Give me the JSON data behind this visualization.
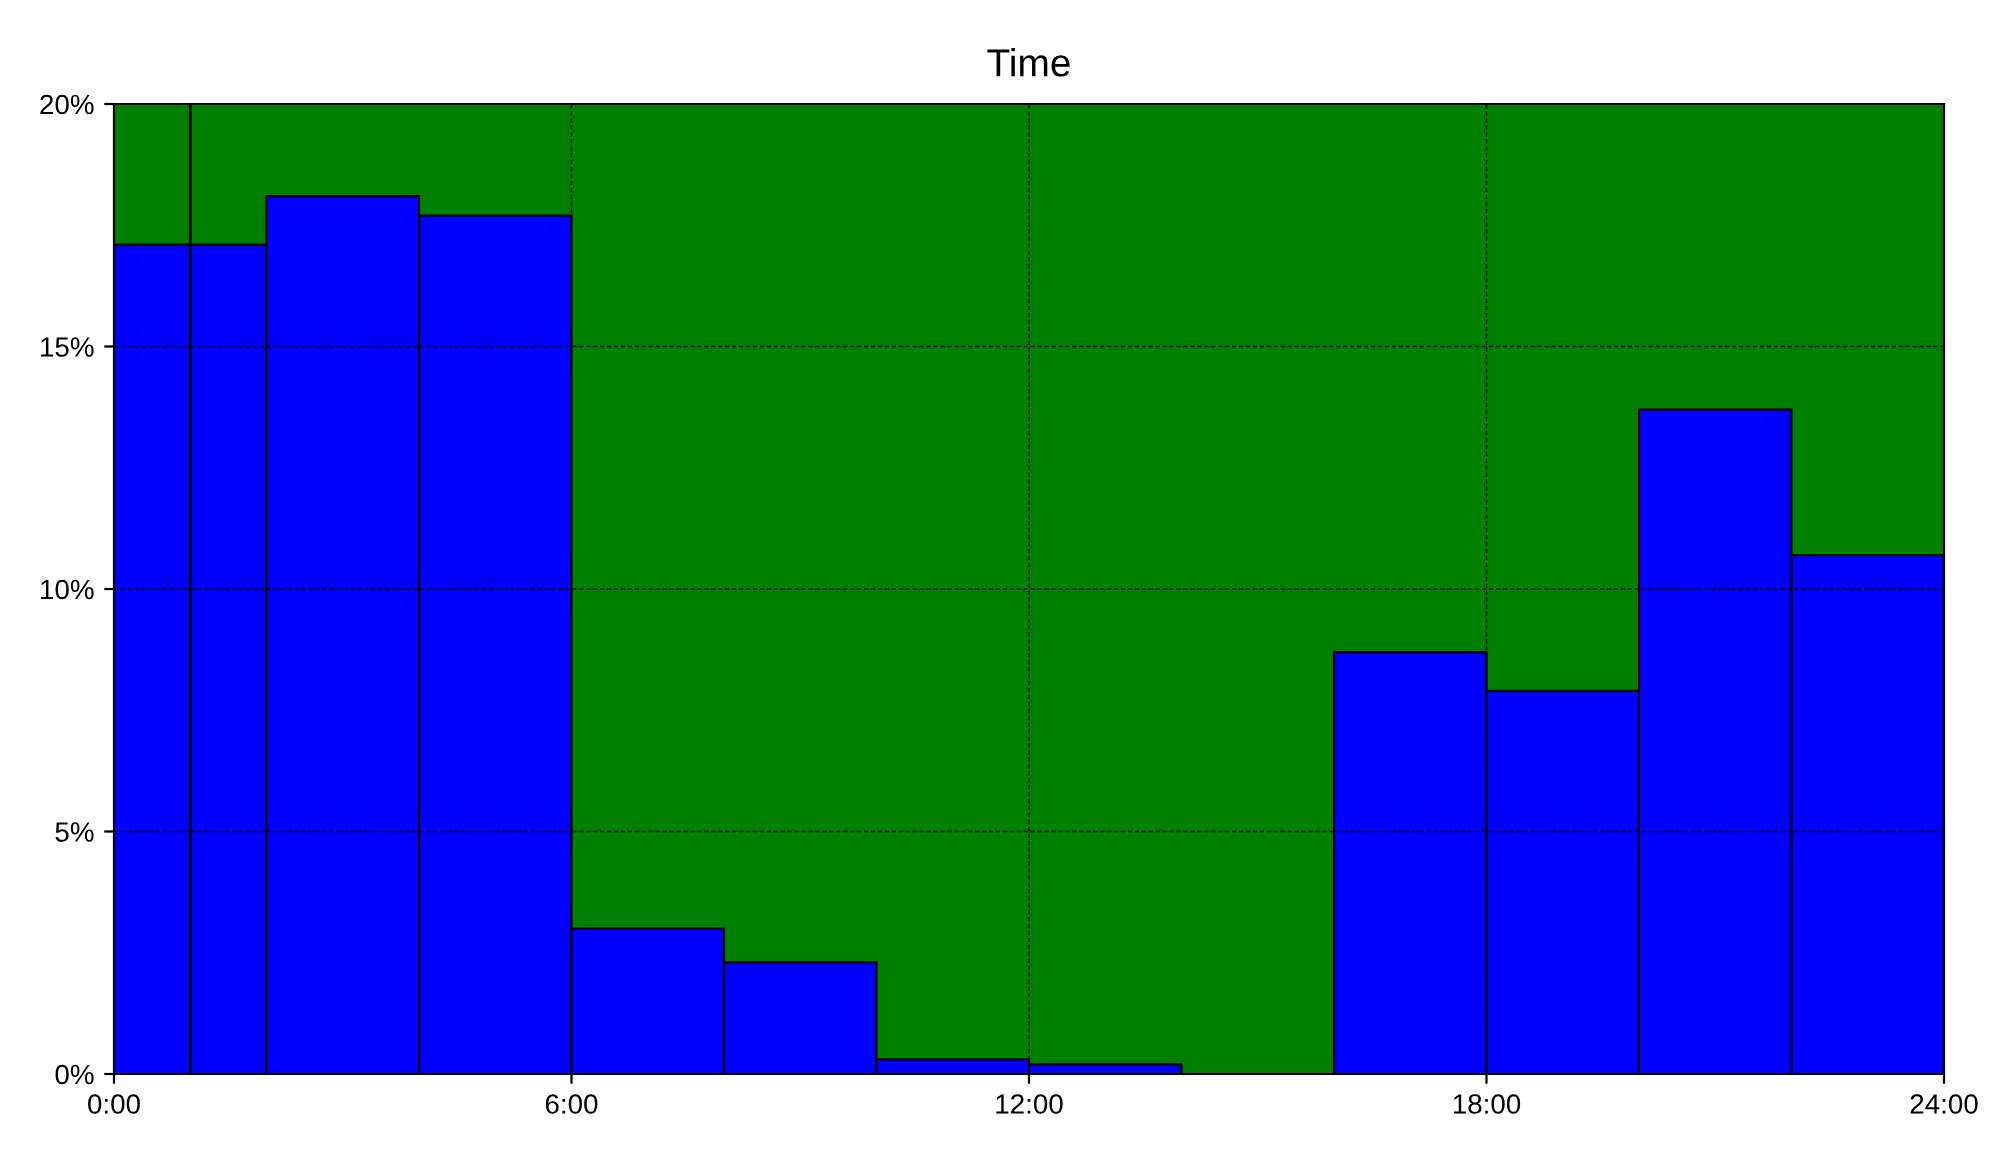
{
  "chart_data": {
    "type": "histogram",
    "title": "Time",
    "bins": [
      0,
      2,
      4,
      6,
      8,
      10,
      12,
      14,
      16,
      18,
      20,
      22,
      24
    ],
    "values": [
      17.1,
      18.1,
      17.7,
      3.0,
      2.3,
      0.3,
      0.2,
      0,
      8.7,
      7.9,
      13.7,
      10.7
    ],
    "color": "#0000ff",
    "xlim": [
      0,
      24
    ],
    "xticks": [
      {
        "value": 0,
        "label": "0:00"
      },
      {
        "value": 6,
        "label": "6:00"
      },
      {
        "value": 12,
        "label": "12:00"
      },
      {
        "value": 18,
        "label": "18:00"
      },
      {
        "value": 24,
        "label": "24:00"
      }
    ],
    "ylim": [
      0,
      20
    ],
    "yticks": [
      {
        "value": 0,
        "label": "0%"
      },
      {
        "value": 5,
        "label": "5%"
      },
      {
        "value": 10,
        "label": "10%"
      },
      {
        "value": 15,
        "label": "15%"
      },
      {
        "value": 20,
        "label": "20%"
      }
    ],
    "grid": true,
    "ref_lines": [
      {
        "axis": "x",
        "value": 1,
        "color": "#000000",
        "line_style": "solid"
      }
    ]
  }
}
